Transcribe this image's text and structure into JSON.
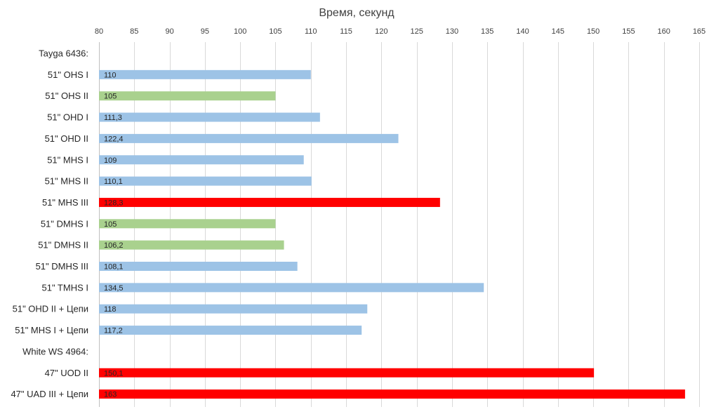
{
  "chart_data": {
    "type": "bar",
    "orientation": "horizontal",
    "title": "Время, секунд",
    "xlim": [
      80,
      165
    ],
    "x_ticks": [
      80,
      85,
      90,
      95,
      100,
      105,
      110,
      115,
      120,
      125,
      130,
      135,
      140,
      145,
      150,
      155,
      160,
      165
    ],
    "x_tick_labels": [
      "80",
      "85",
      "90",
      "95",
      "100",
      "105",
      "110",
      "115",
      "120",
      "125",
      "130",
      "135",
      "140",
      "145",
      "150",
      "155",
      "160",
      "165"
    ],
    "axis_position": "top",
    "grid": true,
    "legend": "none",
    "colors": {
      "blue": "#9dc3e6",
      "green": "#a9d18e",
      "red": "#ff0000"
    },
    "bars": [
      {
        "category": "Tayga 6436:",
        "value": null,
        "label": "",
        "color": "none"
      },
      {
        "category": "51\" OHS I",
        "value": 110,
        "label": "110",
        "color": "blue"
      },
      {
        "category": "51\" OHS II",
        "value": 105,
        "label": "105",
        "color": "green"
      },
      {
        "category": "51\" OHD I",
        "value": 111.3,
        "label": "111,3",
        "color": "blue"
      },
      {
        "category": "51\" OHD II",
        "value": 122.4,
        "label": "122,4",
        "color": "blue"
      },
      {
        "category": "51\" MHS I",
        "value": 109,
        "label": "109",
        "color": "blue"
      },
      {
        "category": "51\" MHS II",
        "value": 110.1,
        "label": "110,1",
        "color": "blue"
      },
      {
        "category": "51\" MHS III",
        "value": 128.3,
        "label": "128,3",
        "color": "red"
      },
      {
        "category": "51\" DMHS I",
        "value": 105,
        "label": "105",
        "color": "green"
      },
      {
        "category": "51\" DMHS II",
        "value": 106.2,
        "label": "106,2",
        "color": "green"
      },
      {
        "category": "51\" DMHS III",
        "value": 108.1,
        "label": "108,1",
        "color": "blue"
      },
      {
        "category": "51\" TMHS I",
        "value": 134.5,
        "label": "134,5",
        "color": "blue"
      },
      {
        "category": "51\" OHD II + Цепи",
        "value": 118,
        "label": "118",
        "color": "blue"
      },
      {
        "category": "51\" MHS I + Цепи",
        "value": 117.2,
        "label": "117,2",
        "color": "blue"
      },
      {
        "category": "White WS 4964:",
        "value": null,
        "label": "",
        "color": "none"
      },
      {
        "category": "47\" UOD II",
        "value": 150.1,
        "label": "150,1",
        "color": "red"
      },
      {
        "category": "47\" UAD III + Цепи",
        "value": 163,
        "label": "163",
        "color": "red"
      }
    ]
  }
}
